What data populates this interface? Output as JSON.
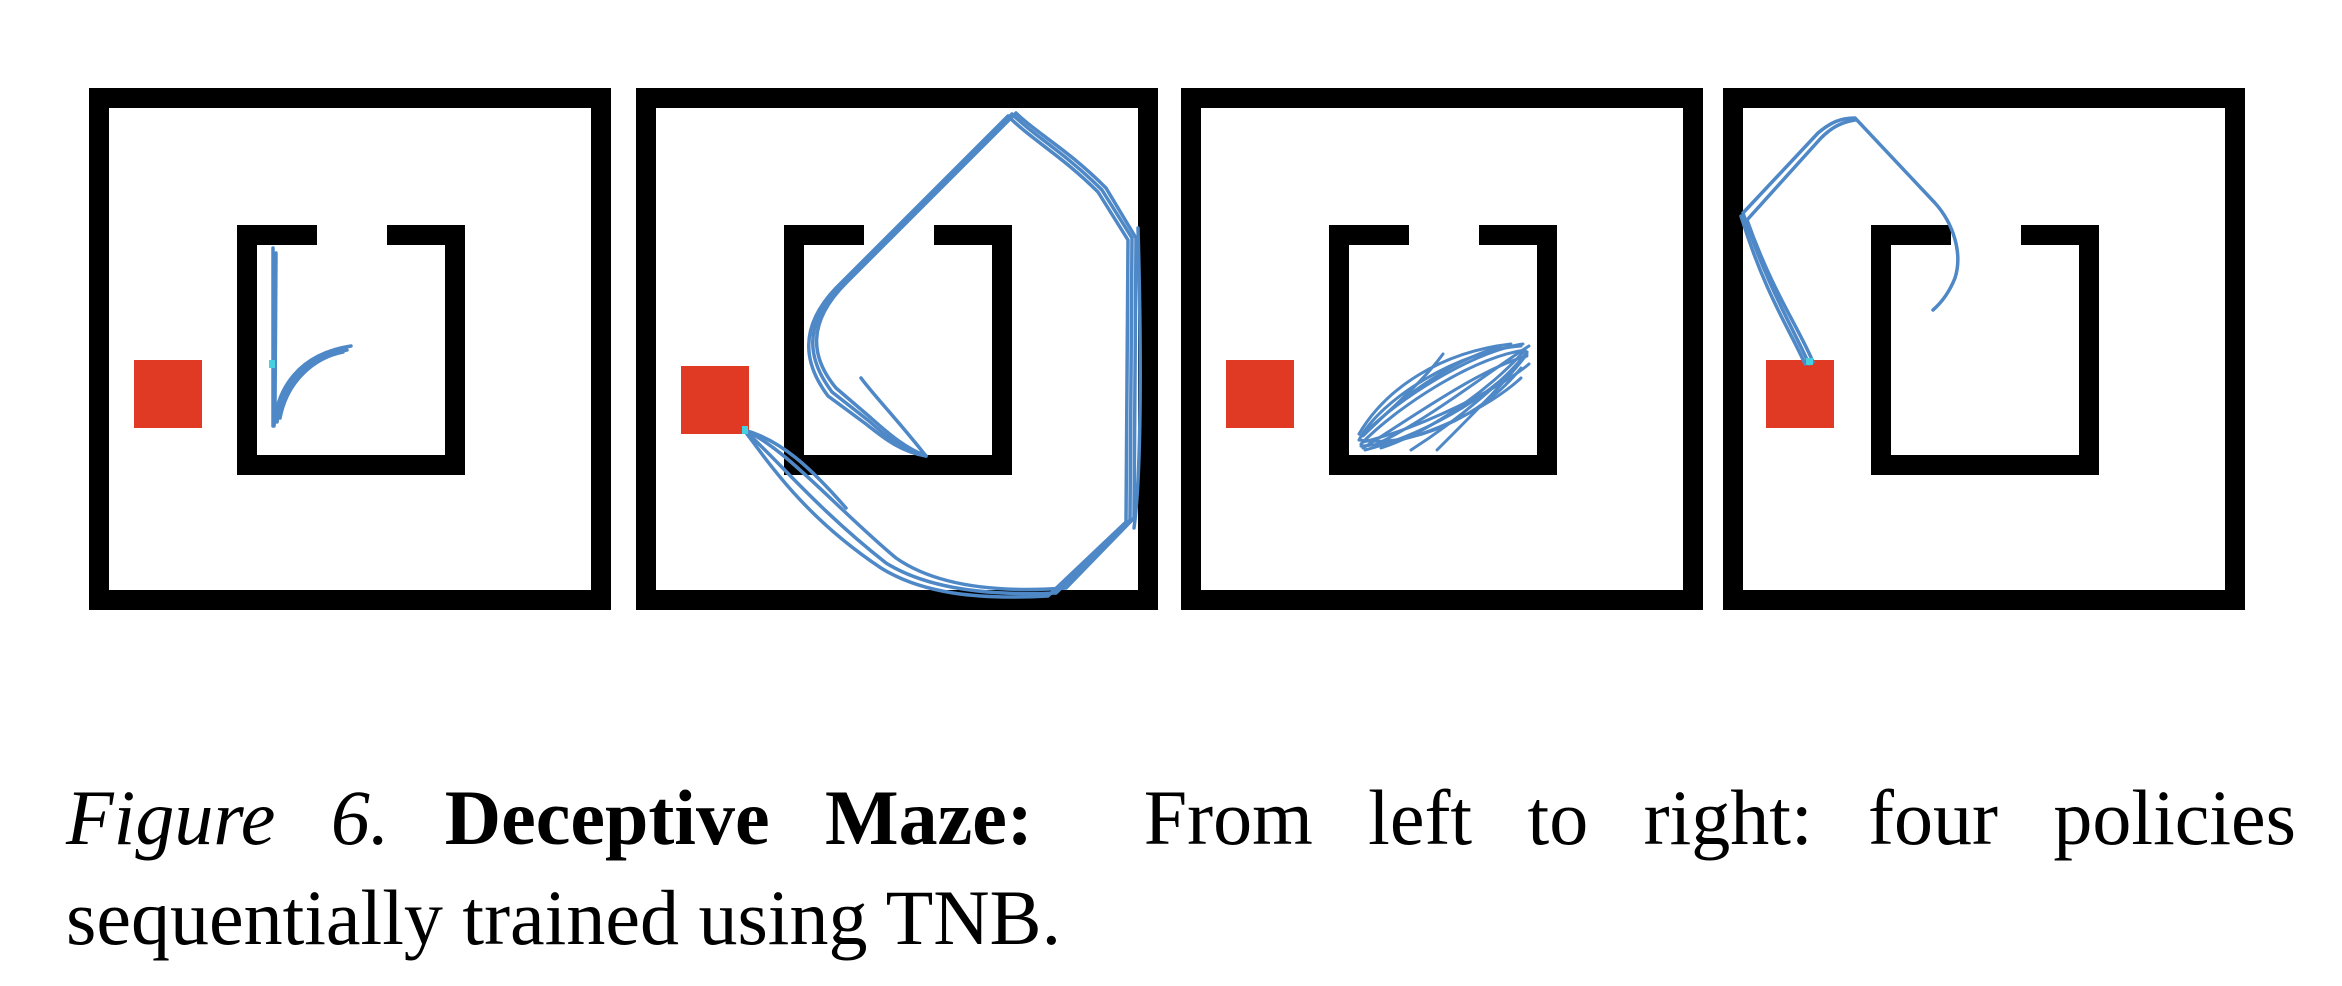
{
  "figure": {
    "colors": {
      "walls": "#000000",
      "goal": "#e03a24",
      "trajectory": "#4f88c6",
      "trajectory_start": "#45d0e0",
      "background": "#ffffff"
    },
    "panels": [
      {
        "id": "policy-1",
        "order": 1
      },
      {
        "id": "policy-2",
        "order": 2
      },
      {
        "id": "policy-3",
        "order": 3
      },
      {
        "id": "policy-4",
        "order": 4
      }
    ]
  },
  "caption": {
    "label": "Figure 6.",
    "title": "Deceptive Maze:",
    "text": "From left to right: four policies sequentially trained using TNB."
  }
}
